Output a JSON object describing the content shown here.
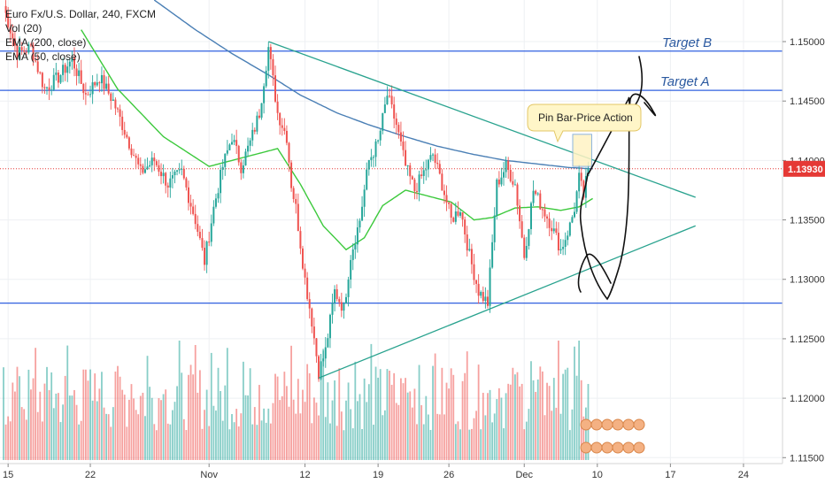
{
  "legend": {
    "symbol": "Euro Fx/U.S. Dollar, 240, FXCM",
    "vol": "Vol (20)",
    "ema200": "EMA (200, close)",
    "ema50": "EMA (50, close)"
  },
  "annotations": {
    "target_b": "Target B",
    "target_a": "Target A",
    "callout": "Pin Bar-Price Action"
  },
  "colors": {
    "up": "#26a69a",
    "down": "#ef5350",
    "ema50": "#3cc93c",
    "ema200": "#4a7fb5",
    "hline": "#3060e0",
    "trend": "#2aa38f",
    "price_line": "#e53935"
  },
  "chart_data": {
    "type": "candlestick",
    "symbol": "EURUSD",
    "timeframe": "240",
    "ylim": [
      1.1145,
      1.1535
    ],
    "y_ticks": [
      "1.15000",
      "1.14500",
      "1.14000",
      "1.13500",
      "1.13000",
      "1.12500",
      "1.12000",
      "1.11500"
    ],
    "x_ticks": [
      "15",
      "22",
      "Nov",
      "12",
      "19",
      "26",
      "Dec",
      "10",
      "17",
      "24"
    ],
    "x_tick_index": [
      2,
      38,
      90,
      132,
      164,
      195,
      228,
      260,
      292,
      324
    ],
    "last_price": "1.13930",
    "last_price_value": 1.1393,
    "horizontal_levels": [
      1.1492,
      1.1459,
      1.128
    ],
    "trendlines": [
      {
        "name": "upper",
        "from": [
          116,
          1.15
        ],
        "to": [
          303,
          1.1369
        ]
      },
      {
        "name": "lower",
        "from": [
          138,
          1.1217
        ],
        "to": [
          303,
          1.1345
        ]
      }
    ],
    "anchors": [
      [
        0,
        1.153
      ],
      [
        6,
        1.149
      ],
      [
        12,
        1.1495
      ],
      [
        18,
        1.146
      ],
      [
        24,
        1.147
      ],
      [
        30,
        1.1485
      ],
      [
        36,
        1.1455
      ],
      [
        42,
        1.147
      ],
      [
        48,
        1.145
      ],
      [
        54,
        1.142
      ],
      [
        60,
        1.139
      ],
      [
        66,
        1.14
      ],
      [
        72,
        1.138
      ],
      [
        78,
        1.139
      ],
      [
        84,
        1.135
      ],
      [
        88,
        1.1315
      ],
      [
        92,
        1.136
      ],
      [
        96,
        1.1395
      ],
      [
        100,
        1.142
      ],
      [
        104,
        1.1395
      ],
      [
        108,
        1.1415
      ],
      [
        112,
        1.144
      ],
      [
        116,
        1.1495
      ],
      [
        120,
        1.144
      ],
      [
        124,
        1.142
      ],
      [
        126,
        1.138
      ],
      [
        128,
        1.136
      ],
      [
        130,
        1.133
      ],
      [
        132,
        1.13
      ],
      [
        135,
        1.1265
      ],
      [
        138,
        1.1222
      ],
      [
        141,
        1.124
      ],
      [
        145,
        1.129
      ],
      [
        149,
        1.1275
      ],
      [
        152,
        1.132
      ],
      [
        156,
        1.135
      ],
      [
        160,
        1.14
      ],
      [
        164,
        1.1415
      ],
      [
        168,
        1.1455
      ],
      [
        172,
        1.143
      ],
      [
        176,
        1.1395
      ],
      [
        180,
        1.1375
      ],
      [
        184,
        1.139
      ],
      [
        188,
        1.1405
      ],
      [
        192,
        1.138
      ],
      [
        196,
        1.135
      ],
      [
        200,
        1.136
      ],
      [
        204,
        1.132
      ],
      [
        208,
        1.129
      ],
      [
        212,
        1.128
      ],
      [
        216,
        1.138
      ],
      [
        220,
        1.1395
      ],
      [
        224,
        1.138
      ],
      [
        228,
        1.132
      ],
      [
        232,
        1.1375
      ],
      [
        236,
        1.136
      ],
      [
        240,
        1.1345
      ],
      [
        244,
        1.1325
      ],
      [
        248,
        1.1345
      ],
      [
        250,
        1.136
      ],
      [
        252,
        1.1385
      ],
      [
        254,
        1.137
      ],
      [
        256,
        1.1393
      ]
    ],
    "ema50_anchors": [
      [
        34,
        1.151
      ],
      [
        50,
        1.146
      ],
      [
        70,
        1.142
      ],
      [
        90,
        1.1395
      ],
      [
        110,
        1.1405
      ],
      [
        120,
        1.141
      ],
      [
        130,
        1.138
      ],
      [
        140,
        1.1345
      ],
      [
        150,
        1.1325
      ],
      [
        158,
        1.1335
      ],
      [
        166,
        1.1362
      ],
      [
        176,
        1.1375
      ],
      [
        186,
        1.137
      ],
      [
        196,
        1.1365
      ],
      [
        206,
        1.135
      ],
      [
        214,
        1.1352
      ],
      [
        224,
        1.136
      ],
      [
        234,
        1.1361
      ],
      [
        244,
        1.1358
      ],
      [
        252,
        1.1361
      ],
      [
        258,
        1.1368
      ]
    ],
    "ema200_anchors": [
      [
        66,
        1.1535
      ],
      [
        84,
        1.151
      ],
      [
        100,
        1.149
      ],
      [
        116,
        1.1472
      ],
      [
        130,
        1.1455
      ],
      [
        146,
        1.144
      ],
      [
        160,
        1.143
      ],
      [
        176,
        1.142
      ],
      [
        190,
        1.1412
      ],
      [
        206,
        1.1405
      ],
      [
        220,
        1.14
      ],
      [
        234,
        1.1397
      ],
      [
        248,
        1.1394
      ],
      [
        258,
        1.1393
      ]
    ],
    "volume_max": 1.0
  }
}
